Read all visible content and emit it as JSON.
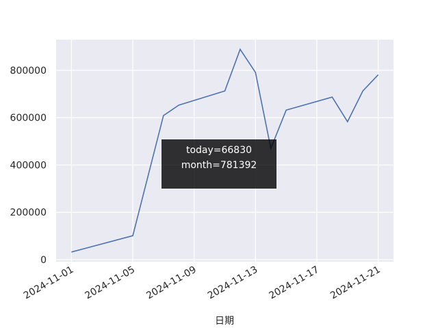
{
  "chart_data": {
    "type": "line",
    "x": [
      "2024-11-01",
      "2024-11-05",
      "2024-11-07",
      "2024-11-08",
      "2024-11-11",
      "2024-11-12",
      "2024-11-13",
      "2024-11-14",
      "2024-11-15",
      "2024-11-18",
      "2024-11-19",
      "2024-11-20",
      "2024-11-21"
    ],
    "series": [
      {
        "color": "#4c72b0",
        "values": [
          32000,
          101000,
          609000,
          653000,
          713000,
          889000,
          791000,
          470000,
          632000,
          687000,
          583000,
          713000,
          781392
        ]
      }
    ],
    "xlim": [
      "2024-10-31",
      "2024-11-22"
    ],
    "xticks": [
      "2024-11-01",
      "2024-11-05",
      "2024-11-09",
      "2024-11-13",
      "2024-11-17",
      "2024-11-21"
    ],
    "ylim": [
      -9000,
      930000
    ],
    "yticks": [
      0,
      200000,
      400000,
      600000,
      800000
    ],
    "xlabel": "日期",
    "grid": true,
    "annotation": [
      "today=66830",
      "month=781392"
    ]
  }
}
